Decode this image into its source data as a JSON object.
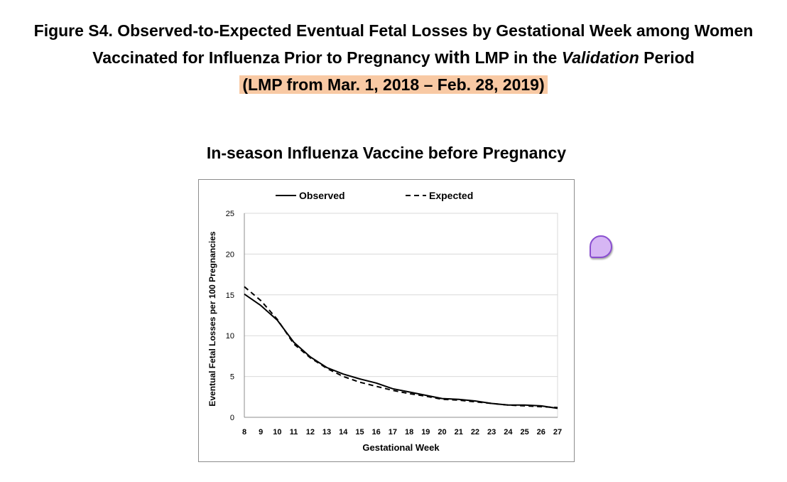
{
  "figure": {
    "title_line1": "Figure S4. Observed-to-Expected Eventual Fetal Losses by Gestational Week among Women",
    "title_line2_a": "Vaccinated for Influenza Prior to Pregnancy ",
    "title_line2_b": "with",
    "title_line2_c": " LMP in the ",
    "title_line2_d": "Validation",
    "title_line2_e": " Period",
    "title_line3": "(LMP from Mar. 1, 2018 – Feb. 28, 2019)",
    "highlight_color": "#f8c9a4"
  },
  "comment_icon": {
    "name": "comment-bubble-icon",
    "color": "#d6b6f4"
  },
  "chart_data": {
    "type": "line",
    "title": "In-season Influenza Vaccine before Pregnancy",
    "xlabel": "Gestational Week",
    "ylabel": "Eventual Fetal Losses per 100 Pregnancies",
    "x": [
      8,
      9,
      10,
      11,
      12,
      13,
      14,
      15,
      16,
      17,
      18,
      19,
      20,
      21,
      22,
      23,
      24,
      25,
      26,
      27
    ],
    "xticks": [
      "8",
      "9",
      "10",
      "11",
      "12",
      "13",
      "14",
      "15",
      "16",
      "17",
      "18",
      "19",
      "20",
      "21",
      "22",
      "23",
      "24",
      "25",
      "26",
      "27"
    ],
    "ylim": [
      0,
      25
    ],
    "yticks": [
      "0",
      "5",
      "10",
      "15",
      "20",
      "25"
    ],
    "grid": true,
    "legend_position": "top",
    "series": [
      {
        "name": "Observed",
        "style": "solid",
        "values": [
          15.1,
          13.7,
          11.9,
          9.2,
          7.4,
          6.1,
          5.3,
          4.7,
          4.2,
          3.5,
          3.1,
          2.7,
          2.3,
          2.2,
          2.0,
          1.7,
          1.5,
          1.5,
          1.4,
          1.1
        ]
      },
      {
        "name": "Expected",
        "style": "dashed",
        "values": [
          16.0,
          14.3,
          12.0,
          9.0,
          7.3,
          6.0,
          5.0,
          4.3,
          3.8,
          3.3,
          2.9,
          2.6,
          2.2,
          2.1,
          1.9,
          1.7,
          1.5,
          1.4,
          1.3,
          1.2
        ]
      }
    ],
    "line_color": "#000000",
    "grid_color": "#d9d9d9"
  }
}
